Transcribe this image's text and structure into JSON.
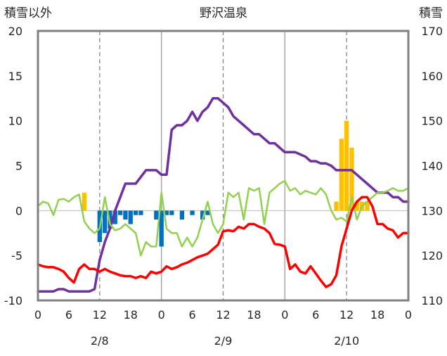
{
  "chart_data": {
    "type": "bar+line",
    "title": "野沢温泉",
    "y_left_label": "積雪以外",
    "y_right_label": "積雪",
    "y_left": {
      "ticks": [
        20,
        15,
        10,
        5,
        0,
        -5,
        -10
      ],
      "range": [
        -10,
        20
      ]
    },
    "y_right": {
      "ticks": [
        170,
        160,
        150,
        140,
        130,
        120,
        110
      ],
      "range": [
        110,
        170
      ]
    },
    "x_ticks": [
      "0",
      "6",
      "12",
      "18",
      "0",
      "6",
      "12",
      "18",
      "0",
      "6",
      "12",
      "18",
      "0"
    ],
    "x_range_hours": [
      0,
      72
    ],
    "date_labels": [
      "2/8",
      "2/9",
      "2/10"
    ],
    "grid": "dashed vertical lines at 12h and solid at day boundaries",
    "colors": {
      "precip": "#ffc000",
      "wind_bar": "#0070c0",
      "temperature": "#ff0000",
      "wind_line": "#92d050",
      "snow_depth": "#7030a0"
    },
    "series": [
      {
        "type": "bar",
        "color": "#ffc000",
        "axis": "left",
        "points": [
          [
            9,
            2
          ],
          [
            58,
            1
          ],
          [
            59,
            8
          ],
          [
            60,
            10
          ],
          [
            61,
            7
          ],
          [
            62,
            1
          ],
          [
            63,
            1
          ],
          [
            64,
            1
          ]
        ]
      },
      {
        "type": "bar",
        "color": "#0070c0",
        "axis": "left",
        "points": [
          [
            12,
            -3.5
          ],
          [
            13,
            -2.5
          ],
          [
            14,
            -2
          ],
          [
            15,
            -1.5
          ],
          [
            16,
            -0.5
          ],
          [
            17,
            -1
          ],
          [
            18,
            -1.5
          ],
          [
            19,
            -0.5
          ],
          [
            20,
            -0.5
          ],
          [
            23,
            -1
          ],
          [
            24,
            -4
          ],
          [
            25,
            -0.5
          ],
          [
            26,
            -0.5
          ],
          [
            28,
            -1
          ],
          [
            30,
            -0.5
          ],
          [
            32,
            -1
          ],
          [
            33,
            -0.5
          ]
        ]
      },
      {
        "type": "line",
        "color": "#7030a0",
        "axis": "right",
        "points": [
          [
            0,
            112
          ],
          [
            1,
            112
          ],
          [
            2,
            112
          ],
          [
            3,
            112
          ],
          [
            4,
            112.5
          ],
          [
            5,
            112.5
          ],
          [
            6,
            112
          ],
          [
            7,
            112
          ],
          [
            8,
            112
          ],
          [
            9,
            112
          ],
          [
            10,
            112
          ],
          [
            11,
            112.5
          ],
          [
            12,
            119
          ],
          [
            13,
            123
          ],
          [
            14,
            126
          ],
          [
            15,
            130
          ],
          [
            16,
            133
          ],
          [
            17,
            136
          ],
          [
            18,
            136
          ],
          [
            19,
            136
          ],
          [
            20,
            137.5
          ],
          [
            21,
            139
          ],
          [
            22,
            139
          ],
          [
            23,
            139
          ],
          [
            24,
            138
          ],
          [
            25,
            138
          ],
          [
            26,
            148
          ],
          [
            27,
            149
          ],
          [
            28,
            149
          ],
          [
            29,
            150
          ],
          [
            30,
            152
          ],
          [
            31,
            150
          ],
          [
            32,
            152
          ],
          [
            33,
            153
          ],
          [
            34,
            155
          ],
          [
            35,
            155
          ],
          [
            36,
            154
          ],
          [
            37,
            153
          ],
          [
            38,
            151
          ],
          [
            39,
            150
          ],
          [
            40,
            149
          ],
          [
            41,
            148
          ],
          [
            42,
            147
          ],
          [
            43,
            147
          ],
          [
            44,
            146
          ],
          [
            45,
            145
          ],
          [
            46,
            145
          ],
          [
            47,
            144
          ],
          [
            48,
            143
          ],
          [
            49,
            143
          ],
          [
            50,
            143
          ],
          [
            51,
            142.5
          ],
          [
            52,
            142
          ],
          [
            53,
            141
          ],
          [
            54,
            141
          ],
          [
            55,
            140.5
          ],
          [
            56,
            140.5
          ],
          [
            57,
            140
          ],
          [
            58,
            139
          ],
          [
            59,
            139
          ],
          [
            60,
            139
          ],
          [
            61,
            139
          ],
          [
            62,
            138
          ],
          [
            63,
            137
          ],
          [
            64,
            136
          ],
          [
            65,
            135
          ],
          [
            66,
            134
          ],
          [
            67,
            134
          ],
          [
            68,
            134
          ],
          [
            69,
            133
          ],
          [
            70,
            133
          ],
          [
            71,
            132
          ],
          [
            72,
            132
          ]
        ]
      },
      {
        "type": "line",
        "color": "#92d050",
        "axis": "left",
        "points": [
          [
            0,
            0.5
          ],
          [
            1,
            1
          ],
          [
            2,
            0.8
          ],
          [
            3,
            -0.5
          ],
          [
            4,
            1.2
          ],
          [
            5,
            1.3
          ],
          [
            6,
            1
          ],
          [
            7,
            1.5
          ],
          [
            8,
            1.8
          ],
          [
            9,
            -1.2
          ],
          [
            10,
            -2
          ],
          [
            11,
            -2.5
          ],
          [
            12,
            -2
          ],
          [
            13,
            1.5
          ],
          [
            14,
            -1.5
          ],
          [
            15,
            -2.2
          ],
          [
            16,
            -2
          ],
          [
            17,
            -1.5
          ],
          [
            18,
            -2
          ],
          [
            19,
            -2.5
          ],
          [
            20,
            -5
          ],
          [
            21,
            -3.5
          ],
          [
            22,
            -4
          ],
          [
            23,
            -4
          ],
          [
            24,
            2
          ],
          [
            25,
            -2
          ],
          [
            26,
            -2.5
          ],
          [
            27,
            -2.5
          ],
          [
            28,
            -4
          ],
          [
            29,
            -3
          ],
          [
            30,
            -4
          ],
          [
            31,
            -3
          ],
          [
            32,
            -1
          ],
          [
            33,
            1
          ],
          [
            34,
            -1.5
          ],
          [
            35,
            -2.5
          ],
          [
            36,
            -1.5
          ],
          [
            37,
            2
          ],
          [
            38,
            1.5
          ],
          [
            39,
            2
          ],
          [
            40,
            -1
          ],
          [
            41,
            2.5
          ],
          [
            42,
            2.2
          ],
          [
            43,
            2.5
          ],
          [
            44,
            -1.5
          ],
          [
            45,
            2
          ],
          [
            46,
            2.5
          ],
          [
            47,
            3
          ],
          [
            48,
            3.3
          ],
          [
            49,
            2.2
          ],
          [
            50,
            2.5
          ],
          [
            51,
            1.8
          ],
          [
            52,
            2.2
          ],
          [
            53,
            2
          ],
          [
            54,
            1.8
          ],
          [
            55,
            2.5
          ],
          [
            56,
            1.8
          ],
          [
            57,
            0
          ],
          [
            58,
            -1
          ],
          [
            59,
            -0.8
          ],
          [
            60,
            -1.2
          ],
          [
            61,
            1.5
          ],
          [
            62,
            -1
          ],
          [
            63,
            0.5
          ],
          [
            64,
            1
          ],
          [
            65,
            1.5
          ],
          [
            66,
            2
          ],
          [
            67,
            2
          ],
          [
            68,
            2.2
          ],
          [
            69,
            2.5
          ],
          [
            70,
            2.2
          ],
          [
            71,
            2.2
          ],
          [
            72,
            2.5
          ]
        ]
      },
      {
        "type": "line",
        "color": "#ff0000",
        "axis": "left",
        "points": [
          [
            0,
            -6
          ],
          [
            1,
            -6.2
          ],
          [
            2,
            -6.3
          ],
          [
            3,
            -6.3
          ],
          [
            4,
            -6.5
          ],
          [
            5,
            -6.8
          ],
          [
            6,
            -7.5
          ],
          [
            7,
            -8
          ],
          [
            8,
            -6.5
          ],
          [
            9,
            -6
          ],
          [
            10,
            -6.5
          ],
          [
            11,
            -6.5
          ],
          [
            12,
            -6.8
          ],
          [
            13,
            -6.5
          ],
          [
            14,
            -6.8
          ],
          [
            15,
            -7
          ],
          [
            16,
            -7.2
          ],
          [
            17,
            -7.3
          ],
          [
            18,
            -7.3
          ],
          [
            19,
            -7.5
          ],
          [
            20,
            -7.3
          ],
          [
            21,
            -7.5
          ],
          [
            22,
            -6.8
          ],
          [
            23,
            -7
          ],
          [
            24,
            -6.8
          ],
          [
            25,
            -6.2
          ],
          [
            26,
            -6.5
          ],
          [
            27,
            -6.3
          ],
          [
            28,
            -6
          ],
          [
            29,
            -5.8
          ],
          [
            30,
            -5.5
          ],
          [
            31,
            -5.2
          ],
          [
            32,
            -5
          ],
          [
            33,
            -4.8
          ],
          [
            34,
            -4.3
          ],
          [
            35,
            -3.8
          ],
          [
            36,
            -2.3
          ],
          [
            37,
            -2.2
          ],
          [
            38,
            -2.3
          ],
          [
            39,
            -1.8
          ],
          [
            40,
            -2
          ],
          [
            41,
            -1.5
          ],
          [
            42,
            -1.5
          ],
          [
            43,
            -1.8
          ],
          [
            44,
            -2
          ],
          [
            45,
            -2.5
          ],
          [
            46,
            -3.7
          ],
          [
            47,
            -3.8
          ],
          [
            48,
            -4
          ],
          [
            49,
            -6.5
          ],
          [
            50,
            -6
          ],
          [
            51,
            -6.8
          ],
          [
            52,
            -7
          ],
          [
            53,
            -6.2
          ],
          [
            54,
            -7
          ],
          [
            55,
            -7.8
          ],
          [
            56,
            -8.5
          ],
          [
            57,
            -8.2
          ],
          [
            58,
            -7.2
          ],
          [
            59,
            -4
          ],
          [
            60,
            -2
          ],
          [
            61,
            0
          ],
          [
            62,
            1
          ],
          [
            63,
            1.5
          ],
          [
            64,
            1.5
          ],
          [
            65,
            0.5
          ],
          [
            66,
            -1.5
          ],
          [
            67,
            -1.5
          ],
          [
            68,
            -2
          ],
          [
            69,
            -2.2
          ],
          [
            70,
            -3
          ],
          [
            71,
            -2.5
          ],
          [
            72,
            -2.5
          ]
        ]
      }
    ]
  }
}
